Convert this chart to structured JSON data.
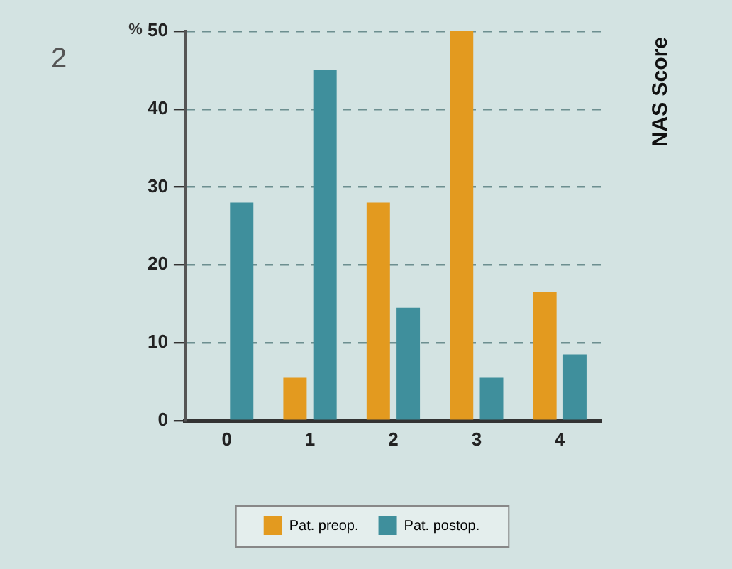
{
  "chart_data": {
    "type": "bar",
    "title": "NAS Score",
    "ylabel": "%",
    "annotations": [
      "2"
    ],
    "categories": [
      "0",
      "1",
      "2",
      "3",
      "4"
    ],
    "series": [
      {
        "name": "Pat. preop.",
        "color": "#e39a1f",
        "values": [
          0,
          5.5,
          28,
          50,
          16.5
        ]
      },
      {
        "name": "Pat. postop.",
        "color": "#3f8f9c",
        "values": [
          28,
          45,
          14.5,
          5.5,
          8.5
        ]
      }
    ],
    "ylim": [
      0,
      50
    ],
    "yticks": [
      0,
      10,
      20,
      30,
      40,
      50
    ],
    "grid": "y",
    "legend": "bottom"
  }
}
